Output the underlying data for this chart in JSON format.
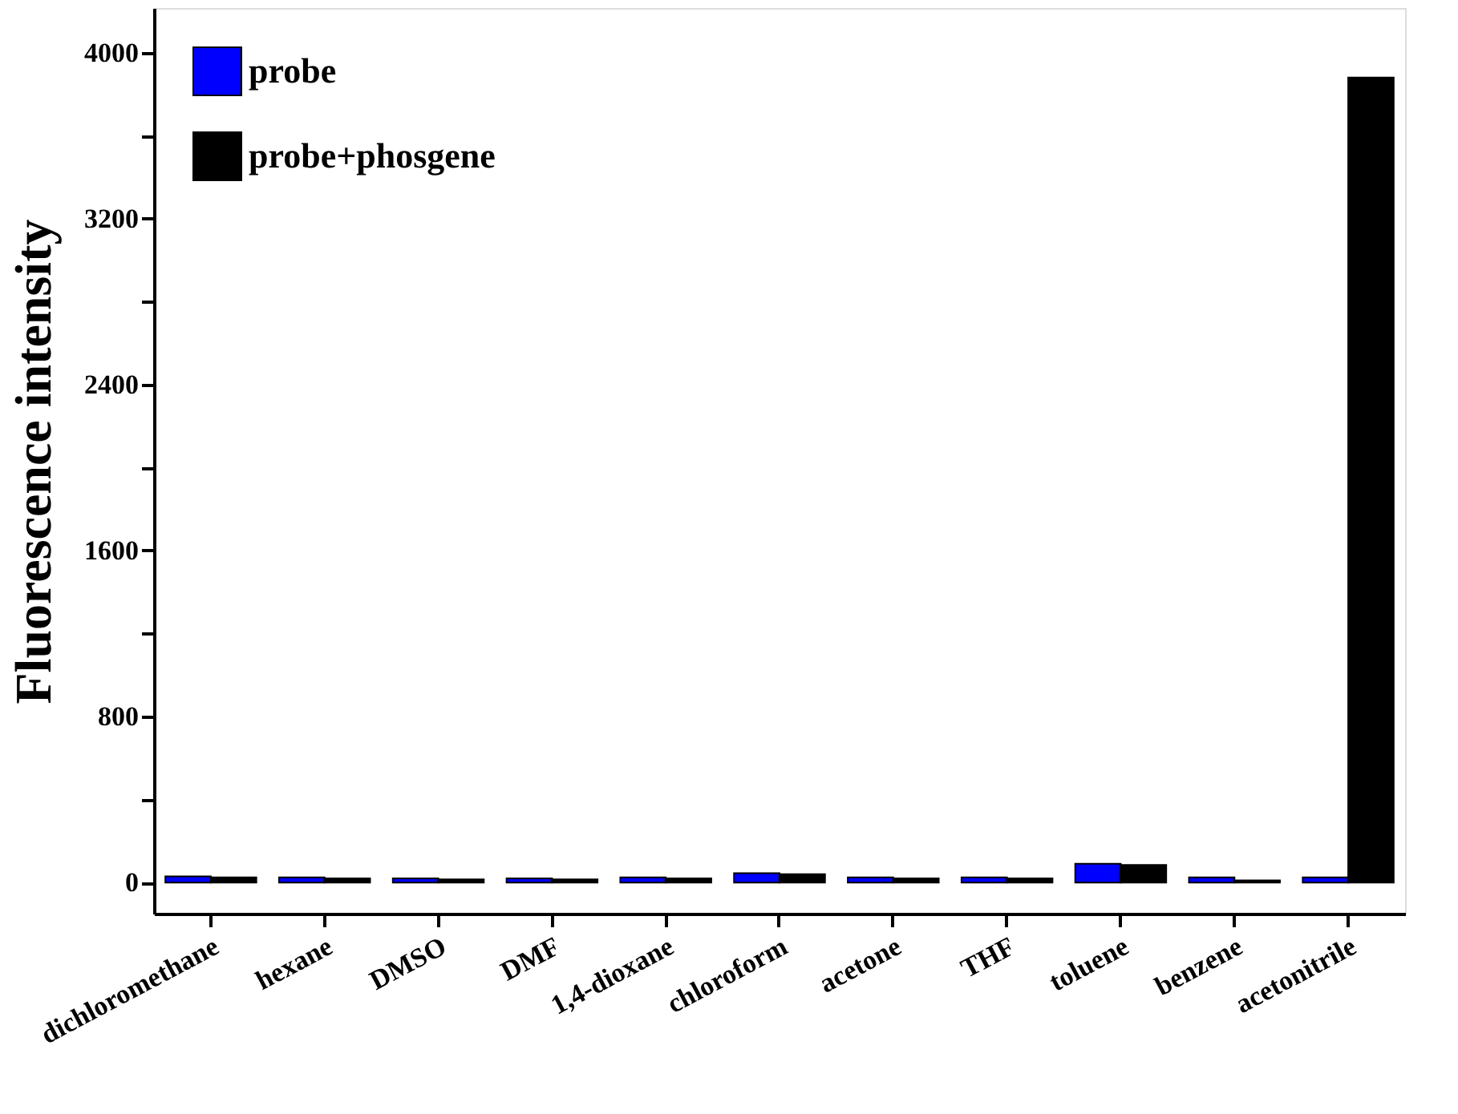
{
  "chart_data": {
    "type": "bar",
    "ylabel": "Fluorescence intensity",
    "categories": [
      "dichloromethane",
      "hexane",
      "DMSO",
      "DMF",
      "1,4-dioxane",
      "chloroform",
      "acetone",
      "THF",
      "toluene",
      "benzene",
      "acetonitrile"
    ],
    "series": [
      {
        "name": "probe",
        "color": "#0000ff",
        "values": [
          30,
          25,
          20,
          20,
          25,
          45,
          25,
          25,
          90,
          25,
          25
        ]
      },
      {
        "name": "probe+phosgene",
        "color": "#000000",
        "values": [
          25,
          20,
          15,
          15,
          20,
          40,
          20,
          20,
          85,
          10,
          3880
        ]
      }
    ],
    "ylim": [
      -150,
      4215
    ],
    "yticks": [
      0,
      {
        "value": 400,
        "label": null
      },
      800,
      {
        "value": 1200,
        "label": null
      },
      1600,
      {
        "value": 2000,
        "label": null
      },
      2400,
      {
        "value": 2800,
        "label": null
      },
      3200,
      {
        "value": 3600,
        "label": null
      },
      4000
    ],
    "grid": false,
    "legend": "top left"
  }
}
